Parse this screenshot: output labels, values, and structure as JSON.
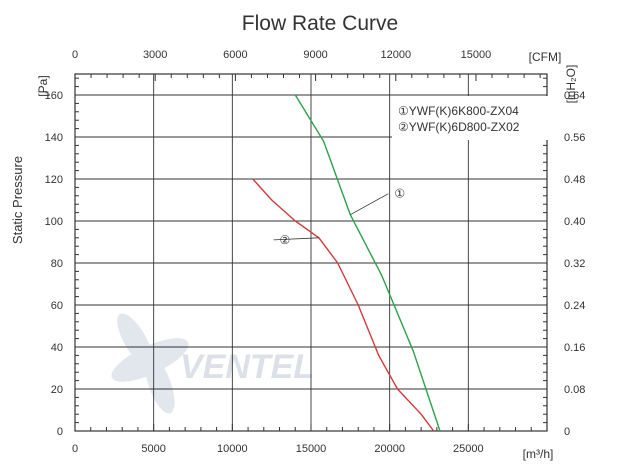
{
  "chart_data": {
    "type": "line",
    "title": "Flow Rate Curve",
    "xlabel_bottom_unit": "[m³/h]",
    "xlabel_top_unit": "[CFM]",
    "ylabel_left": "Static Pressure",
    "ylabel_left_unit": "[Pa]",
    "ylabel_right_unit": "[inH₂O]",
    "xlim": [
      0,
      30000
    ],
    "ylim": [
      0,
      170
    ],
    "x_ticks_bottom": [
      "0",
      "5000",
      "10000",
      "15000",
      "20000",
      "25000"
    ],
    "x_ticks_top": [
      "0",
      "3000",
      "6000",
      "9000",
      "12000",
      "15000"
    ],
    "y_ticks_left": [
      "0",
      "20",
      "40",
      "60",
      "80",
      "100",
      "120",
      "140",
      "160"
    ],
    "y_ticks_right": [
      "0",
      "0.08",
      "0.16",
      "0.24",
      "0.32",
      "0.40",
      "0.48",
      "0.56",
      "0.64"
    ],
    "grid": true,
    "legend_position": "top-right",
    "series": [
      {
        "name": "①YWF(K)6K800-ZX04",
        "callout": "①",
        "color": "#2aa24a",
        "points": [
          [
            14000,
            160
          ],
          [
            15800,
            138
          ],
          [
            17500,
            103
          ],
          [
            19500,
            74
          ],
          [
            21500,
            38
          ],
          [
            23200,
            0
          ]
        ]
      },
      {
        "name": "②YWF(K)6D800-ZX02",
        "callout": "②",
        "color": "#d23a3a",
        "points": [
          [
            11300,
            120
          ],
          [
            12500,
            110
          ],
          [
            14000,
            100
          ],
          [
            15500,
            92
          ],
          [
            16700,
            80
          ],
          [
            18000,
            60
          ],
          [
            19300,
            36
          ],
          [
            20500,
            20
          ],
          [
            22000,
            8
          ],
          [
            22800,
            0
          ]
        ]
      }
    ]
  },
  "watermark": {
    "text": "VENTEL"
  },
  "colors": {
    "frame": "#333333",
    "grid": "#333333",
    "watermark": "#d6dce6"
  }
}
